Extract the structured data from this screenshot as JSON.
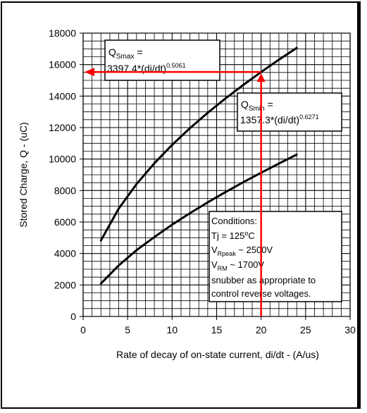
{
  "chart_data": {
    "type": "line",
    "xlabel": "Rate of decay of on-state current, di/dt - (A/us)",
    "ylabel": "Stored Charge, Q - (uC)",
    "xlim": [
      0,
      30
    ],
    "ylim": [
      0,
      18000
    ],
    "x_ticks": [
      0,
      5,
      10,
      15,
      20,
      25,
      30
    ],
    "y_ticks": [
      0,
      2000,
      4000,
      6000,
      8000,
      10000,
      12000,
      14000,
      16000,
      18000
    ],
    "minor_grid_x": 1,
    "minor_grid_y": 500,
    "grid": true,
    "series": [
      {
        "name": "",
        "x": [
          2,
          4,
          6,
          8,
          10,
          12,
          14,
          16,
          18,
          20,
          22,
          24
        ],
        "y": [
          4830,
          6850,
          8410,
          9730,
          10900,
          11960,
          12940,
          13850,
          14710,
          15530,
          16310,
          17060
        ],
        "color": "#000000"
      },
      {
        "name": "",
        "x": [
          2,
          4,
          6,
          8,
          10,
          12,
          14,
          16,
          18,
          20,
          22,
          24
        ],
        "y": [
          2090,
          3240,
          4210,
          5040,
          5830,
          6560,
          7250,
          7900,
          8530,
          9130,
          9710,
          10280
        ],
        "color": "#000000"
      }
    ],
    "annotations": {
      "qsmax": {
        "q": "Q",
        "sub": "Smax",
        "eq": " =",
        "formula": "3397.4*(di/dt)",
        "exp": "0.5061"
      },
      "qsmin": {
        "q": "Q",
        "sub": "Smin",
        "eq": " =",
        "formula": "1357.3*(di/dt)",
        "exp": "0.6271"
      },
      "conditions": {
        "title": "Conditions:",
        "tj_prefix": "Tj = 125",
        "tj_sup": "o",
        "tj_suffix": "C",
        "vr_main": "V",
        "vr_sub": "Rpeak",
        "vr_rest": " ~ 2500V",
        "vrm_main": "V",
        "vrm_sub": "RM",
        "vrm_rest": " ~ 1700V",
        "line5": "snubber as appropriate to",
        "line6": "control reverse voltages."
      }
    },
    "marker": {
      "x": 20,
      "y": 15530,
      "color": "#ff0000"
    }
  }
}
